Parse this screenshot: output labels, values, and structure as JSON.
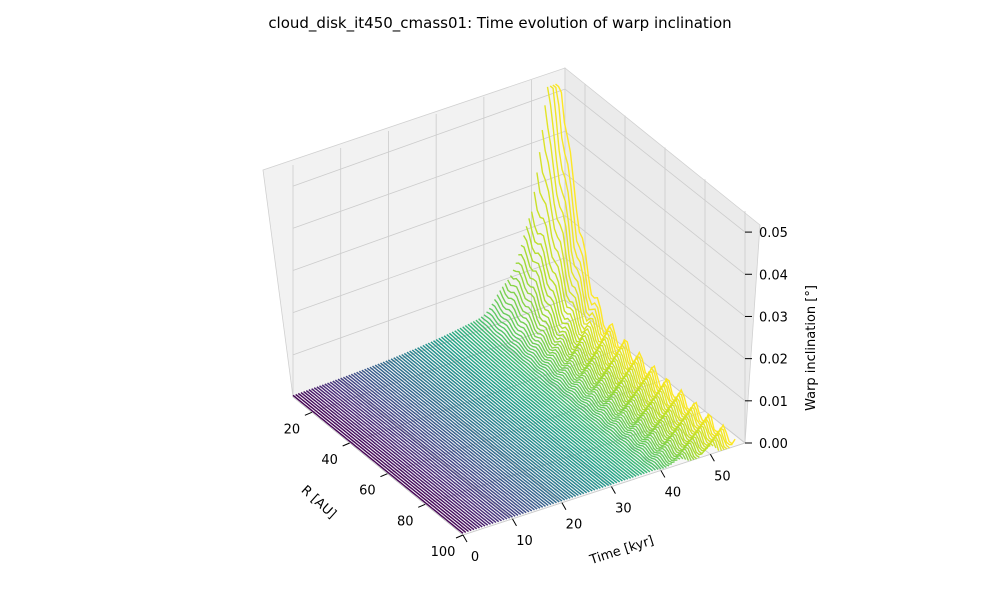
{
  "chart_data": {
    "type": "line",
    "title": "cloud_disk_it450_cmass01: Time evolution of warp inclination",
    "xlabel": "R [AU]",
    "ylabel": "Time [kyr]",
    "zlabel": "Warp inclination [°]",
    "x_ticks": [
      "20",
      "40",
      "60",
      "80",
      "100"
    ],
    "y_ticks": [
      "0",
      "10",
      "20",
      "30",
      "40",
      "50"
    ],
    "z_ticks": [
      "0.00",
      "0.01",
      "0.02",
      "0.03",
      "0.04",
      "0.05"
    ],
    "xlim": [
      10,
      100
    ],
    "ylim": [
      0,
      57
    ],
    "zlim": [
      0,
      0.055
    ],
    "colormap": "viridis",
    "series_count": 100,
    "series_time_range": [
      0,
      55
    ],
    "r_range": [
      10,
      100
    ],
    "colors": {
      "pane_back": "#f2f2f2",
      "pane_side": "#ebebeb",
      "pane_floor": "#f7f7f7",
      "grid": "#cccccc"
    }
  }
}
